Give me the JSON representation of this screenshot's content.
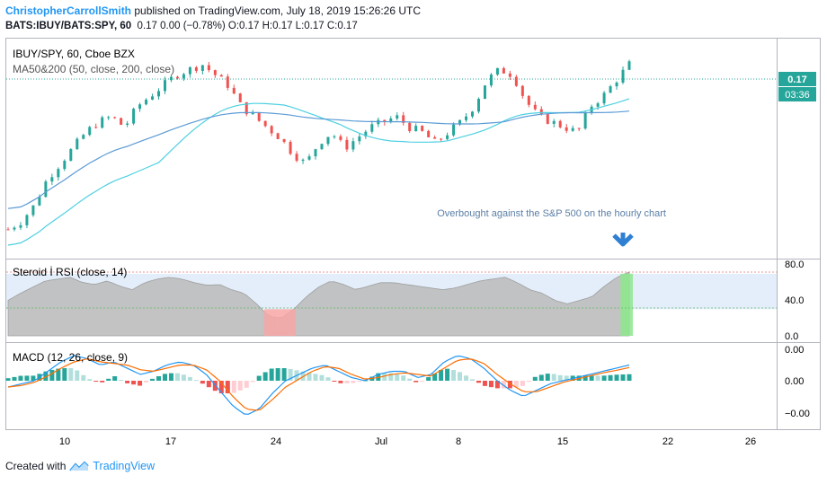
{
  "header": {
    "author": "ChristopherCarrollSmith",
    "published": "published on TradingView.com, July 18, 2019 15:26:26 UTC",
    "symbol": "BATS:IBUY/BATS:SPY, 60",
    "values": "0.17 0.00 (−0.78%) O:0.17 H:0.17 L:0.17 C:0.17"
  },
  "footer": {
    "created": "Created with",
    "brand": "TradingView"
  },
  "colors": {
    "up": "#26a69a",
    "down": "#ef5350",
    "ma50": "#4dd0e1",
    "ma200": "#5b9bd5",
    "macd": "#2196f3",
    "signal": "#ff6d00",
    "rsi_fill": "#bdbdbd",
    "rsi_band": "#e3eefa",
    "rsi_over": "#8ee68e",
    "rsi_under": "#f7a6a6",
    "price_tag": "#26a69a"
  },
  "chart_data": [
    {
      "type": "candlestick",
      "title": "IBUY/SPY, 60, Cboe BZX",
      "indicator_label": "MA50&200 (50, close, 200, close)",
      "annotation": "Overbought against the S&P 500 on the hourly chart",
      "annotation_icon": "arrow-down-icon",
      "last_price": "0.17",
      "countdown": "03:36",
      "x_ticks": [
        "10",
        "17",
        "24",
        "Jul",
        "8",
        "15",
        "22",
        "26"
      ],
      "close_series_approx": [
        0.1405,
        0.142,
        0.145,
        0.15,
        0.153,
        0.156,
        0.159,
        0.161,
        0.162,
        0.16,
        0.164,
        0.166,
        0.168,
        0.17,
        0.171,
        0.172,
        0.17,
        0.168,
        0.164,
        0.162,
        0.16,
        0.158,
        0.155,
        0.153,
        0.157,
        0.159,
        0.156,
        0.158,
        0.16,
        0.161,
        0.162,
        0.16,
        0.159,
        0.157,
        0.159,
        0.161,
        0.164,
        0.169,
        0.171,
        0.17,
        0.165,
        0.162,
        0.161,
        0.16,
        0.159,
        0.164,
        0.166,
        0.169,
        0.172
      ]
    },
    {
      "type": "area",
      "title": "Steroid İ RSI (close, 14)",
      "y_ticks": [
        "80.0",
        "40.0",
        "0.0"
      ],
      "ylim": [
        0,
        80
      ],
      "overbought": 70,
      "oversold": 30,
      "values_approx": [
        40,
        48,
        55,
        62,
        64,
        66,
        60,
        58,
        62,
        56,
        52,
        60,
        64,
        66,
        64,
        60,
        57,
        58,
        52,
        48,
        36,
        22,
        20,
        30,
        44,
        55,
        62,
        58,
        52,
        56,
        60,
        60,
        58,
        56,
        54,
        52,
        54,
        58,
        62,
        64,
        66,
        60,
        52,
        48,
        40,
        36,
        40,
        44,
        56,
        66,
        72
      ]
    },
    {
      "type": "line",
      "title": "MACD (12, 26, close, 9)",
      "y_ticks": [
        "0.00",
        "0.00",
        "−0.00"
      ],
      "series": [
        {
          "name": "MACD",
          "values": [
            -0.2,
            -0.1,
            0.0,
            0.3,
            0.6,
            0.8,
            0.7,
            0.5,
            0.6,
            0.4,
            0.2,
            0.3,
            0.5,
            0.6,
            0.5,
            0.2,
            -0.3,
            -0.8,
            -1.1,
            -0.9,
            -0.4,
            0.0,
            0.2,
            0.4,
            0.5,
            0.3,
            0.1,
            0.0,
            0.2,
            0.3,
            0.3,
            0.1,
            0.2,
            0.6,
            0.8,
            0.7,
            0.4,
            0.0,
            -0.3,
            -0.5,
            -0.3,
            -0.1,
            0.0,
            0.1,
            0.2,
            0.3,
            0.4,
            0.5
          ]
        },
        {
          "name": "Signal",
          "values": [
            -0.2,
            -0.15,
            -0.05,
            0.15,
            0.4,
            0.6,
            0.7,
            0.6,
            0.55,
            0.5,
            0.35,
            0.3,
            0.4,
            0.5,
            0.5,
            0.35,
            0.0,
            -0.5,
            -0.9,
            -0.95,
            -0.6,
            -0.2,
            0.05,
            0.3,
            0.45,
            0.4,
            0.2,
            0.05,
            0.1,
            0.2,
            0.25,
            0.2,
            0.15,
            0.4,
            0.65,
            0.7,
            0.55,
            0.2,
            -0.1,
            -0.35,
            -0.35,
            -0.2,
            -0.05,
            0.05,
            0.15,
            0.25,
            0.33,
            0.42
          ]
        }
      ]
    }
  ]
}
